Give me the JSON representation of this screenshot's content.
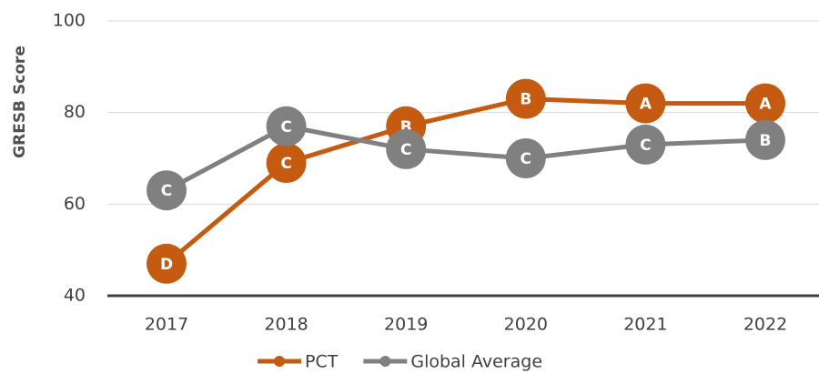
{
  "chart_data": {
    "type": "line",
    "y_label": "GRESB Score",
    "categories": [
      "2017",
      "2018",
      "2019",
      "2020",
      "2021",
      "2022"
    ],
    "series": [
      {
        "name": "PCT",
        "color": "#c55a11",
        "values": [
          47,
          69,
          77,
          83,
          82,
          82
        ],
        "grades": [
          "D",
          "C",
          "B",
          "B",
          "A",
          "A"
        ]
      },
      {
        "name": "Global Average",
        "color": "#808080",
        "values": [
          63,
          77,
          72,
          70,
          73,
          74
        ],
        "grades": [
          "C",
          "C",
          "C",
          "C",
          "C",
          "B"
        ]
      }
    ],
    "ylim": [
      40,
      100
    ],
    "yticks": [
      40,
      60,
      80,
      100
    ],
    "grid": true,
    "legend": "bottom"
  }
}
